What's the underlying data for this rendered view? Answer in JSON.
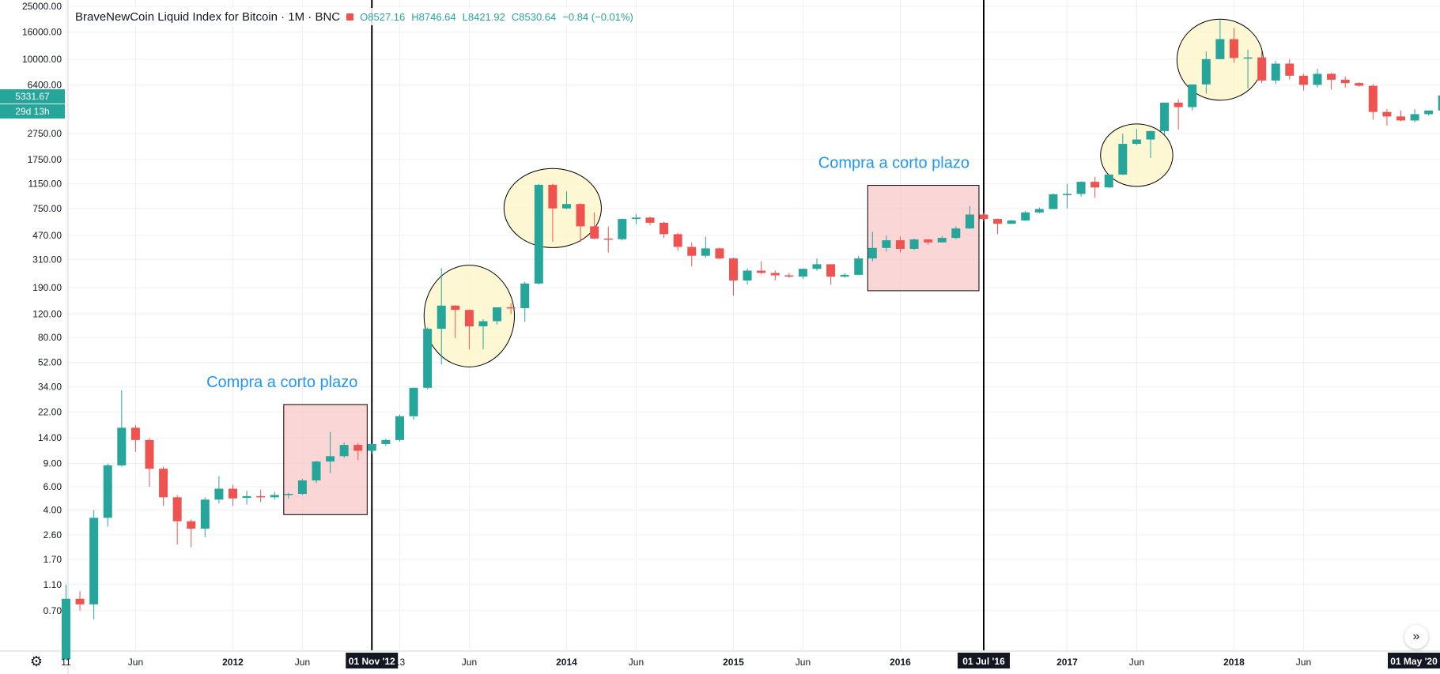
{
  "legend": {
    "title": "BraveNewCoin Liquid Index for Bitcoin · 1M · BNC",
    "open": "O8527.16",
    "high": "H8746.64",
    "low": "L8421.92",
    "close": "C8530.64",
    "change": "−0.84 (−0.01%)"
  },
  "price_badge": {
    "price": "5331.67",
    "countdown": "29d 13h"
  },
  "controls": {
    "settings_icon": "gear-icon",
    "scroll_icon": "double-chevron-right-icon",
    "scroll_glyph": "»"
  },
  "colors": {
    "up": "#26a69a",
    "down": "#ef5350",
    "annotation_text": "#2196f3",
    "zone_fill": "#f8c8c8",
    "highlight_fill": "#fdf6c8"
  },
  "chart_data": {
    "type": "candlestick",
    "title": "BraveNewCoin Liquid Index for Bitcoin · 1M · BNC",
    "yscale": "log",
    "ylim": [
      0.45,
      25000
    ],
    "grid": true,
    "y_ticks": [
      "25000.00",
      "16000.00",
      "10000.00",
      "6400.00",
      "2750.00",
      "1750.00",
      "1150.00",
      "750.00",
      "470.00",
      "310.00",
      "190.00",
      "120.00",
      "80.00",
      "52.00",
      "34.00",
      "22.00",
      "14.00",
      "9.00",
      "6.00",
      "4.00",
      "2.60",
      "1.70",
      "1.10",
      "0.70"
    ],
    "x_ticks": [
      {
        "label": "11",
        "t": 2011.0
      },
      {
        "label": "Jun",
        "t": 2011.417
      },
      {
        "label": "2012",
        "t": 2012.0
      },
      {
        "label": "Jun",
        "t": 2012.417
      },
      {
        "label": "13",
        "t": 2013.0
      },
      {
        "label": "Jun",
        "t": 2013.417
      },
      {
        "label": "2014",
        "t": 2014.0
      },
      {
        "label": "Jun",
        "t": 2014.417
      },
      {
        "label": "2015",
        "t": 2015.0
      },
      {
        "label": "Jun",
        "t": 2015.417
      },
      {
        "label": "2016",
        "t": 2016.0
      },
      {
        "label": "2017",
        "t": 2017.0
      },
      {
        "label": "Jun",
        "t": 2017.417
      },
      {
        "label": "2018",
        "t": 2018.0
      },
      {
        "label": "Jun",
        "t": 2018.417
      }
    ],
    "x_highlights": [
      {
        "label": "01 Nov '12",
        "t": 2012.833
      },
      {
        "label": "01 Jul '16",
        "t": 2016.5
      },
      {
        "label": "01 May '20",
        "t": 2020.333
      }
    ],
    "vertical_lines": [
      2012.833,
      2016.5
    ],
    "candles": [
      {
        "t": "2011-01",
        "o": 0.3,
        "h": 1.1,
        "l": 0.3,
        "c": 0.86
      },
      {
        "t": "2011-02",
        "o": 0.86,
        "h": 0.98,
        "l": 0.7,
        "c": 0.78
      },
      {
        "t": "2011-03",
        "o": 0.78,
        "h": 4.0,
        "l": 0.6,
        "c": 3.5
      },
      {
        "t": "2011-04",
        "o": 3.5,
        "h": 9.0,
        "l": 3.0,
        "c": 8.7
      },
      {
        "t": "2011-05",
        "o": 8.7,
        "h": 32.0,
        "l": 8.5,
        "c": 16.7
      },
      {
        "t": "2011-06",
        "o": 16.7,
        "h": 17.5,
        "l": 11.0,
        "c": 13.5
      },
      {
        "t": "2011-07",
        "o": 13.5,
        "h": 14.0,
        "l": 6.0,
        "c": 8.2
      },
      {
        "t": "2011-08",
        "o": 8.2,
        "h": 8.5,
        "l": 4.3,
        "c": 5.0
      },
      {
        "t": "2011-09",
        "o": 5.0,
        "h": 5.2,
        "l": 2.2,
        "c": 3.3
      },
      {
        "t": "2011-10",
        "o": 3.3,
        "h": 3.4,
        "l": 2.1,
        "c": 2.9
      },
      {
        "t": "2011-11",
        "o": 2.9,
        "h": 5.0,
        "l": 2.5,
        "c": 4.8
      },
      {
        "t": "2011-12",
        "o": 4.8,
        "h": 7.2,
        "l": 4.5,
        "c": 5.8
      },
      {
        "t": "2012-01",
        "o": 5.8,
        "h": 6.2,
        "l": 4.3,
        "c": 4.9
      },
      {
        "t": "2012-02",
        "o": 4.95,
        "h": 5.6,
        "l": 4.4,
        "c": 5.1
      },
      {
        "t": "2012-03",
        "o": 5.1,
        "h": 5.7,
        "l": 4.6,
        "c": 5.0
      },
      {
        "t": "2012-04",
        "o": 5.0,
        "h": 5.5,
        "l": 4.8,
        "c": 5.2
      },
      {
        "t": "2012-05",
        "o": 5.2,
        "h": 5.4,
        "l": 4.9,
        "c": 5.3
      },
      {
        "t": "2012-06",
        "o": 5.3,
        "h": 6.9,
        "l": 5.2,
        "c": 6.7
      },
      {
        "t": "2012-07",
        "o": 6.7,
        "h": 9.4,
        "l": 6.4,
        "c": 9.3
      },
      {
        "t": "2012-08",
        "o": 9.3,
        "h": 15.6,
        "l": 7.6,
        "c": 10.2
      },
      {
        "t": "2012-09",
        "o": 10.2,
        "h": 12.9,
        "l": 9.9,
        "c": 12.4
      },
      {
        "t": "2012-10",
        "o": 12.4,
        "h": 12.8,
        "l": 9.5,
        "c": 11.2
      },
      {
        "t": "2012-11",
        "o": 11.2,
        "h": 12.7,
        "l": 10.6,
        "c": 12.6
      },
      {
        "t": "2012-12",
        "o": 12.6,
        "h": 13.8,
        "l": 12.2,
        "c": 13.5
      },
      {
        "t": "2013-01",
        "o": 13.5,
        "h": 21.0,
        "l": 13.2,
        "c": 20.4
      },
      {
        "t": "2013-02",
        "o": 20.4,
        "h": 33.5,
        "l": 19.2,
        "c": 33.4
      },
      {
        "t": "2013-03",
        "o": 33.4,
        "h": 95.0,
        "l": 32.5,
        "c": 93.0
      },
      {
        "t": "2013-04",
        "o": 93.0,
        "h": 266.0,
        "l": 50.0,
        "c": 139.0
      },
      {
        "t": "2013-05",
        "o": 139.0,
        "h": 140.0,
        "l": 79.0,
        "c": 129.0
      },
      {
        "t": "2013-06",
        "o": 129.0,
        "h": 130.0,
        "l": 65.0,
        "c": 97.0
      },
      {
        "t": "2013-07",
        "o": 97.0,
        "h": 110.0,
        "l": 65.0,
        "c": 106.0
      },
      {
        "t": "2013-08",
        "o": 106.0,
        "h": 135.0,
        "l": 100.0,
        "c": 135.0
      },
      {
        "t": "2013-09",
        "o": 135.0,
        "h": 145.0,
        "l": 120.0,
        "c": 133.0
      },
      {
        "t": "2013-10",
        "o": 133.0,
        "h": 210.0,
        "l": 105.0,
        "c": 204.0
      },
      {
        "t": "2013-11",
        "o": 204.0,
        "h": 1150.0,
        "l": 200.0,
        "c": 1130.0
      },
      {
        "t": "2013-12",
        "o": 1130.0,
        "h": 1150.0,
        "l": 420.0,
        "c": 750.0
      },
      {
        "t": "2014-01",
        "o": 750.0,
        "h": 1010.0,
        "l": 740.0,
        "c": 810.0
      },
      {
        "t": "2014-02",
        "o": 810.0,
        "h": 820.0,
        "l": 420.0,
        "c": 550.0
      },
      {
        "t": "2014-03",
        "o": 550.0,
        "h": 700.0,
        "l": 440.0,
        "c": 445.0
      },
      {
        "t": "2014-04",
        "o": 445.0,
        "h": 545.0,
        "l": 350.0,
        "c": 440.0
      },
      {
        "t": "2014-05",
        "o": 440.0,
        "h": 630.0,
        "l": 430.0,
        "c": 625.0
      },
      {
        "t": "2014-06",
        "o": 625.0,
        "h": 680.0,
        "l": 570.0,
        "c": 640.0
      },
      {
        "t": "2014-07",
        "o": 640.0,
        "h": 650.0,
        "l": 560.0,
        "c": 585.0
      },
      {
        "t": "2014-08",
        "o": 585.0,
        "h": 595.0,
        "l": 450.0,
        "c": 480.0
      },
      {
        "t": "2014-09",
        "o": 480.0,
        "h": 490.0,
        "l": 360.0,
        "c": 385.0
      },
      {
        "t": "2014-10",
        "o": 385.0,
        "h": 415.0,
        "l": 275.0,
        "c": 330.0
      },
      {
        "t": "2014-11",
        "o": 330.0,
        "h": 460.0,
        "l": 320.0,
        "c": 375.0
      },
      {
        "t": "2014-12",
        "o": 375.0,
        "h": 380.0,
        "l": 310.0,
        "c": 315.0
      },
      {
        "t": "2015-01",
        "o": 315.0,
        "h": 320.0,
        "l": 165.0,
        "c": 215.0
      },
      {
        "t": "2015-02",
        "o": 215.0,
        "h": 265.0,
        "l": 200.0,
        "c": 255.0
      },
      {
        "t": "2015-03",
        "o": 255.0,
        "h": 300.0,
        "l": 240.0,
        "c": 245.0
      },
      {
        "t": "2015-04",
        "o": 245.0,
        "h": 255.0,
        "l": 215.0,
        "c": 235.0
      },
      {
        "t": "2015-05",
        "o": 235.0,
        "h": 245.0,
        "l": 225.0,
        "c": 230.0
      },
      {
        "t": "2015-06",
        "o": 230.0,
        "h": 265.0,
        "l": 220.0,
        "c": 263.0
      },
      {
        "t": "2015-07",
        "o": 263.0,
        "h": 315.0,
        "l": 255.0,
        "c": 285.0
      },
      {
        "t": "2015-08",
        "o": 285.0,
        "h": 285.0,
        "l": 200.0,
        "c": 230.0
      },
      {
        "t": "2015-09",
        "o": 230.0,
        "h": 245.0,
        "l": 225.0,
        "c": 237.0
      },
      {
        "t": "2015-10",
        "o": 237.0,
        "h": 330.0,
        "l": 235.0,
        "c": 315.0
      },
      {
        "t": "2015-11",
        "o": 315.0,
        "h": 500.0,
        "l": 300.0,
        "c": 378.0
      },
      {
        "t": "2015-12",
        "o": 378.0,
        "h": 470.0,
        "l": 355.0,
        "c": 432.0
      },
      {
        "t": "2016-01",
        "o": 432.0,
        "h": 460.0,
        "l": 350.0,
        "c": 372.0
      },
      {
        "t": "2016-02",
        "o": 372.0,
        "h": 445.0,
        "l": 365.0,
        "c": 438.0
      },
      {
        "t": "2016-03",
        "o": 438.0,
        "h": 440.0,
        "l": 400.0,
        "c": 416.0
      },
      {
        "t": "2016-04",
        "o": 416.0,
        "h": 465.0,
        "l": 415.0,
        "c": 450.0
      },
      {
        "t": "2016-05",
        "o": 450.0,
        "h": 550.0,
        "l": 440.0,
        "c": 530.0
      },
      {
        "t": "2016-06",
        "o": 530.0,
        "h": 780.0,
        "l": 525.0,
        "c": 675.0
      },
      {
        "t": "2016-07",
        "o": 675.0,
        "h": 700.0,
        "l": 600.0,
        "c": 625.0
      },
      {
        "t": "2016-08",
        "o": 625.0,
        "h": 630.0,
        "l": 480.0,
        "c": 575.0
      },
      {
        "t": "2016-09",
        "o": 575.0,
        "h": 615.0,
        "l": 570.0,
        "c": 608.0
      },
      {
        "t": "2016-10",
        "o": 608.0,
        "h": 720.0,
        "l": 605.0,
        "c": 700.0
      },
      {
        "t": "2016-11",
        "o": 700.0,
        "h": 760.0,
        "l": 690.0,
        "c": 742.0
      },
      {
        "t": "2016-12",
        "o": 742.0,
        "h": 975.0,
        "l": 740.0,
        "c": 960.0
      },
      {
        "t": "2017-01",
        "o": 960.0,
        "h": 1150.0,
        "l": 750.0,
        "c": 965.0
      },
      {
        "t": "2017-02",
        "o": 965.0,
        "h": 1200.0,
        "l": 920.0,
        "c": 1190.0
      },
      {
        "t": "2017-03",
        "o": 1190.0,
        "h": 1300.0,
        "l": 900.0,
        "c": 1080.0
      },
      {
        "t": "2017-04",
        "o": 1080.0,
        "h": 1350.0,
        "l": 1070.0,
        "c": 1350.0
      },
      {
        "t": "2017-05",
        "o": 1350.0,
        "h": 2750.0,
        "l": 1340.0,
        "c": 2300.0
      },
      {
        "t": "2017-06",
        "o": 2300.0,
        "h": 2980.0,
        "l": 2250.0,
        "c": 2480.0
      },
      {
        "t": "2017-07",
        "o": 2480.0,
        "h": 2900.0,
        "l": 1800.0,
        "c": 2870.0
      },
      {
        "t": "2017-08",
        "o": 2870.0,
        "h": 4700.0,
        "l": 2700.0,
        "c": 4700.0
      },
      {
        "t": "2017-09",
        "o": 4700.0,
        "h": 4980.0,
        "l": 2950.0,
        "c": 4350.0
      },
      {
        "t": "2017-10",
        "o": 4350.0,
        "h": 6450.0,
        "l": 4100.0,
        "c": 6450.0
      },
      {
        "t": "2017-11",
        "o": 6450.0,
        "h": 11400.0,
        "l": 5500.0,
        "c": 10000.0
      },
      {
        "t": "2017-12",
        "o": 10000.0,
        "h": 19700.0,
        "l": 10000.0,
        "c": 14150.0
      },
      {
        "t": "2018-01",
        "o": 14150.0,
        "h": 17200.0,
        "l": 9400.0,
        "c": 10200.0
      },
      {
        "t": "2018-02",
        "o": 10200.0,
        "h": 11800.0,
        "l": 6000.0,
        "c": 10300.0
      },
      {
        "t": "2018-03",
        "o": 10300.0,
        "h": 11600.0,
        "l": 6600.0,
        "c": 6900.0
      },
      {
        "t": "2018-04",
        "o": 6900.0,
        "h": 9700.0,
        "l": 6500.0,
        "c": 9250.0
      },
      {
        "t": "2018-05",
        "o": 9250.0,
        "h": 10000.0,
        "l": 7000.0,
        "c": 7500.0
      },
      {
        "t": "2018-06",
        "o": 7500.0,
        "h": 7750.0,
        "l": 5800.0,
        "c": 6400.0
      },
      {
        "t": "2018-07",
        "o": 6400.0,
        "h": 8450.0,
        "l": 6100.0,
        "c": 7750.0
      },
      {
        "t": "2018-08",
        "o": 7750.0,
        "h": 7900.0,
        "l": 5900.0,
        "c": 7000.0
      },
      {
        "t": "2018-09",
        "o": 7000.0,
        "h": 7400.0,
        "l": 6100.0,
        "c": 6600.0
      },
      {
        "t": "2018-10",
        "o": 6600.0,
        "h": 6700.0,
        "l": 6200.0,
        "c": 6300.0
      },
      {
        "t": "2018-11",
        "o": 6300.0,
        "h": 6500.0,
        "l": 3500.0,
        "c": 4000.0
      },
      {
        "t": "2018-12",
        "o": 4000.0,
        "h": 4200.0,
        "l": 3150.0,
        "c": 3700.0
      },
      {
        "t": "2019-01",
        "o": 3700.0,
        "h": 4100.0,
        "l": 3400.0,
        "c": 3450.0
      },
      {
        "t": "2019-02",
        "o": 3450.0,
        "h": 4200.0,
        "l": 3350.0,
        "c": 3850.0
      },
      {
        "t": "2019-03",
        "o": 3850.0,
        "h": 4100.0,
        "l": 3750.0,
        "c": 4100.0
      },
      {
        "t": "2019-04",
        "o": 4100.0,
        "h": 5650.0,
        "l": 4050.0,
        "c": 5331.67
      }
    ],
    "zones": [
      {
        "label": "Compra a corto plazo",
        "t0": "2012-05",
        "t1": "2012-11",
        "y0": 3.7,
        "y1": 25.0
      },
      {
        "label": "Compra a corto plazo",
        "t0": "2015-11",
        "t1": "2016-07",
        "y0": 180.0,
        "y1": 1120.0
      }
    ],
    "highlight_ellipses": [
      {
        "t": "2013-06",
        "y": 140.0,
        "span_months": 6.5,
        "span_y": [
          48.0,
          280.0
        ]
      },
      {
        "t": "2013-12",
        "y": 720.0,
        "span_months": 7.0,
        "span_y": [
          380.0,
          1500.0
        ]
      },
      {
        "t": "2017-06",
        "y": 2000.0,
        "span_months": 5.2,
        "span_y": [
          1100.0,
          3250.0
        ]
      },
      {
        "t": "2017-12",
        "y": 10500.0,
        "span_months": 6.2,
        "span_y": [
          4900.0,
          20000.0
        ]
      }
    ]
  }
}
